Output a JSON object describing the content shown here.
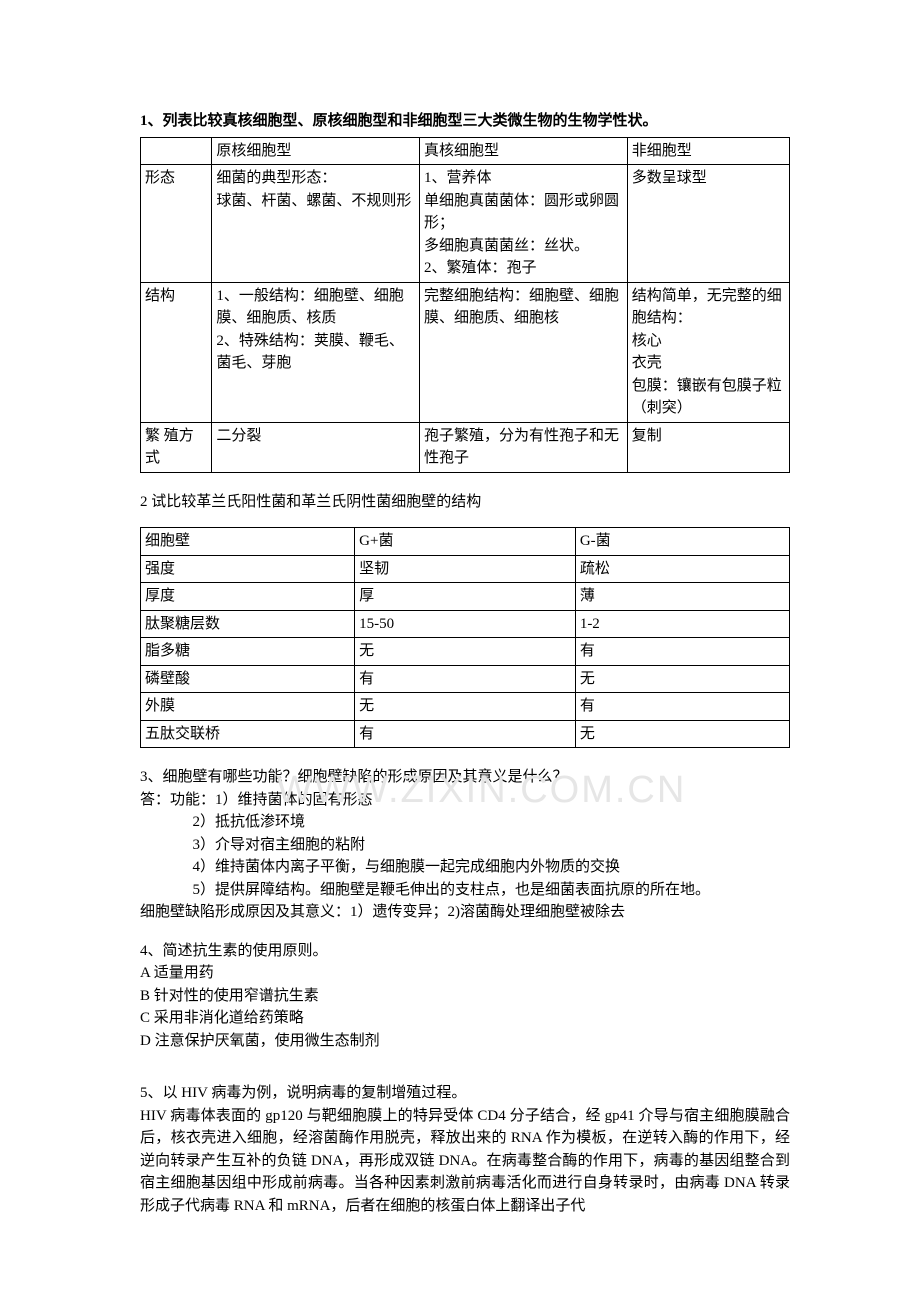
{
  "watermark": "WWW.ZIXIN.COM.CN",
  "q1": {
    "title": "1、列表比较真核细胞型、原核细胞型和非细胞型三大类微生物的生物学性状。",
    "headers": [
      "",
      "原核细胞型",
      "真核细胞型",
      "非细胞型"
    ],
    "rows": [
      {
        "label": "形态",
        "c1": "细菌的典型形态：\n球菌、杆菌、螺菌、不规则形",
        "c2": "1、营养体\n单细胞真菌菌体：圆形或卵圆形；\n多细胞真菌菌丝：丝状。\n2、繁殖体：孢子",
        "c3": "多数呈球型"
      },
      {
        "label": "结构",
        "c1": "1、一般结构：细胞壁、细胞膜、细胞质、核质\n2、特殊结构：荚膜、鞭毛、菌毛、芽胞",
        "c2": "完整细胞结构：细胞壁、细胞膜、细胞质、细胞核",
        "c3": "结构简单，无完整的细胞结构：\n核心\n衣壳\n包膜：镶嵌有包膜子粒（刺突）"
      },
      {
        "label": "繁  殖方式",
        "c1": "二分裂",
        "c2": "孢子繁殖，分为有性孢子和无性孢子",
        "c3": "复制"
      }
    ]
  },
  "q2": {
    "title": "2 试比较革兰氏阳性菌和革兰氏阴性菌细胞壁的结构",
    "headers": [
      "细胞壁",
      "G+菌",
      "G-菌"
    ],
    "rows": [
      [
        "强度",
        "坚韧",
        "疏松"
      ],
      [
        "厚度",
        "厚",
        "薄"
      ],
      [
        "肽聚糖层数",
        "15-50",
        "1-2"
      ],
      [
        "脂多糖",
        "无",
        "有"
      ],
      [
        "磷壁酸",
        "有",
        "无"
      ],
      [
        "外膜",
        "无",
        "有"
      ],
      [
        "五肽交联桥",
        "有",
        "无"
      ]
    ]
  },
  "q3": {
    "title": "3、细胞壁有哪些功能？细胞壁缺陷的形成原因及其意义是什么？",
    "lead": "答：功能：1）维持菌体的固有形态",
    "lines": [
      "2）抵抗低渗环境",
      "3）介导对宿主细胞的粘附",
      "4）维持菌体内离子平衡，与细胞膜一起完成细胞内外物质的交换",
      "5）提供屏障结构。细胞壁是鞭毛伸出的支柱点，也是细菌表面抗原的所在地。"
    ],
    "tail": "细胞壁缺陷形成原因及其意义：1）遗传变异；2)溶菌酶处理细胞壁被除去"
  },
  "q4": {
    "title": "4、简述抗生素的使用原则。",
    "lines": [
      "A 适量用药",
      "B 针对性的使用窄谱抗生素",
      "C 采用非消化道给药策略",
      "D 注意保护厌氧菌，使用微生态制剂"
    ]
  },
  "q5": {
    "title": "5、以 HIV 病毒为例，说明病毒的复制增殖过程。",
    "body": "HIV 病毒体表面的 gp120 与靶细胞膜上的特异受体 CD4 分子结合，经 gp41 介导与宿主细胞膜融合后，核衣壳进入细胞，经溶菌酶作用脱壳，释放出来的 RNA 作为模板，在逆转入酶的作用下，经逆向转录产生互补的负链 DNA，再形成双链 DNA。在病毒整合酶的作用下，病毒的基因组整合到宿主细胞基因组中形成前病毒。当各种因素刺激前病毒活化而进行自身转录时，由病毒 DNA 转录形成子代病毒 RNA 和 mRNA，后者在细胞的核蛋白体上翻译出子代"
  }
}
